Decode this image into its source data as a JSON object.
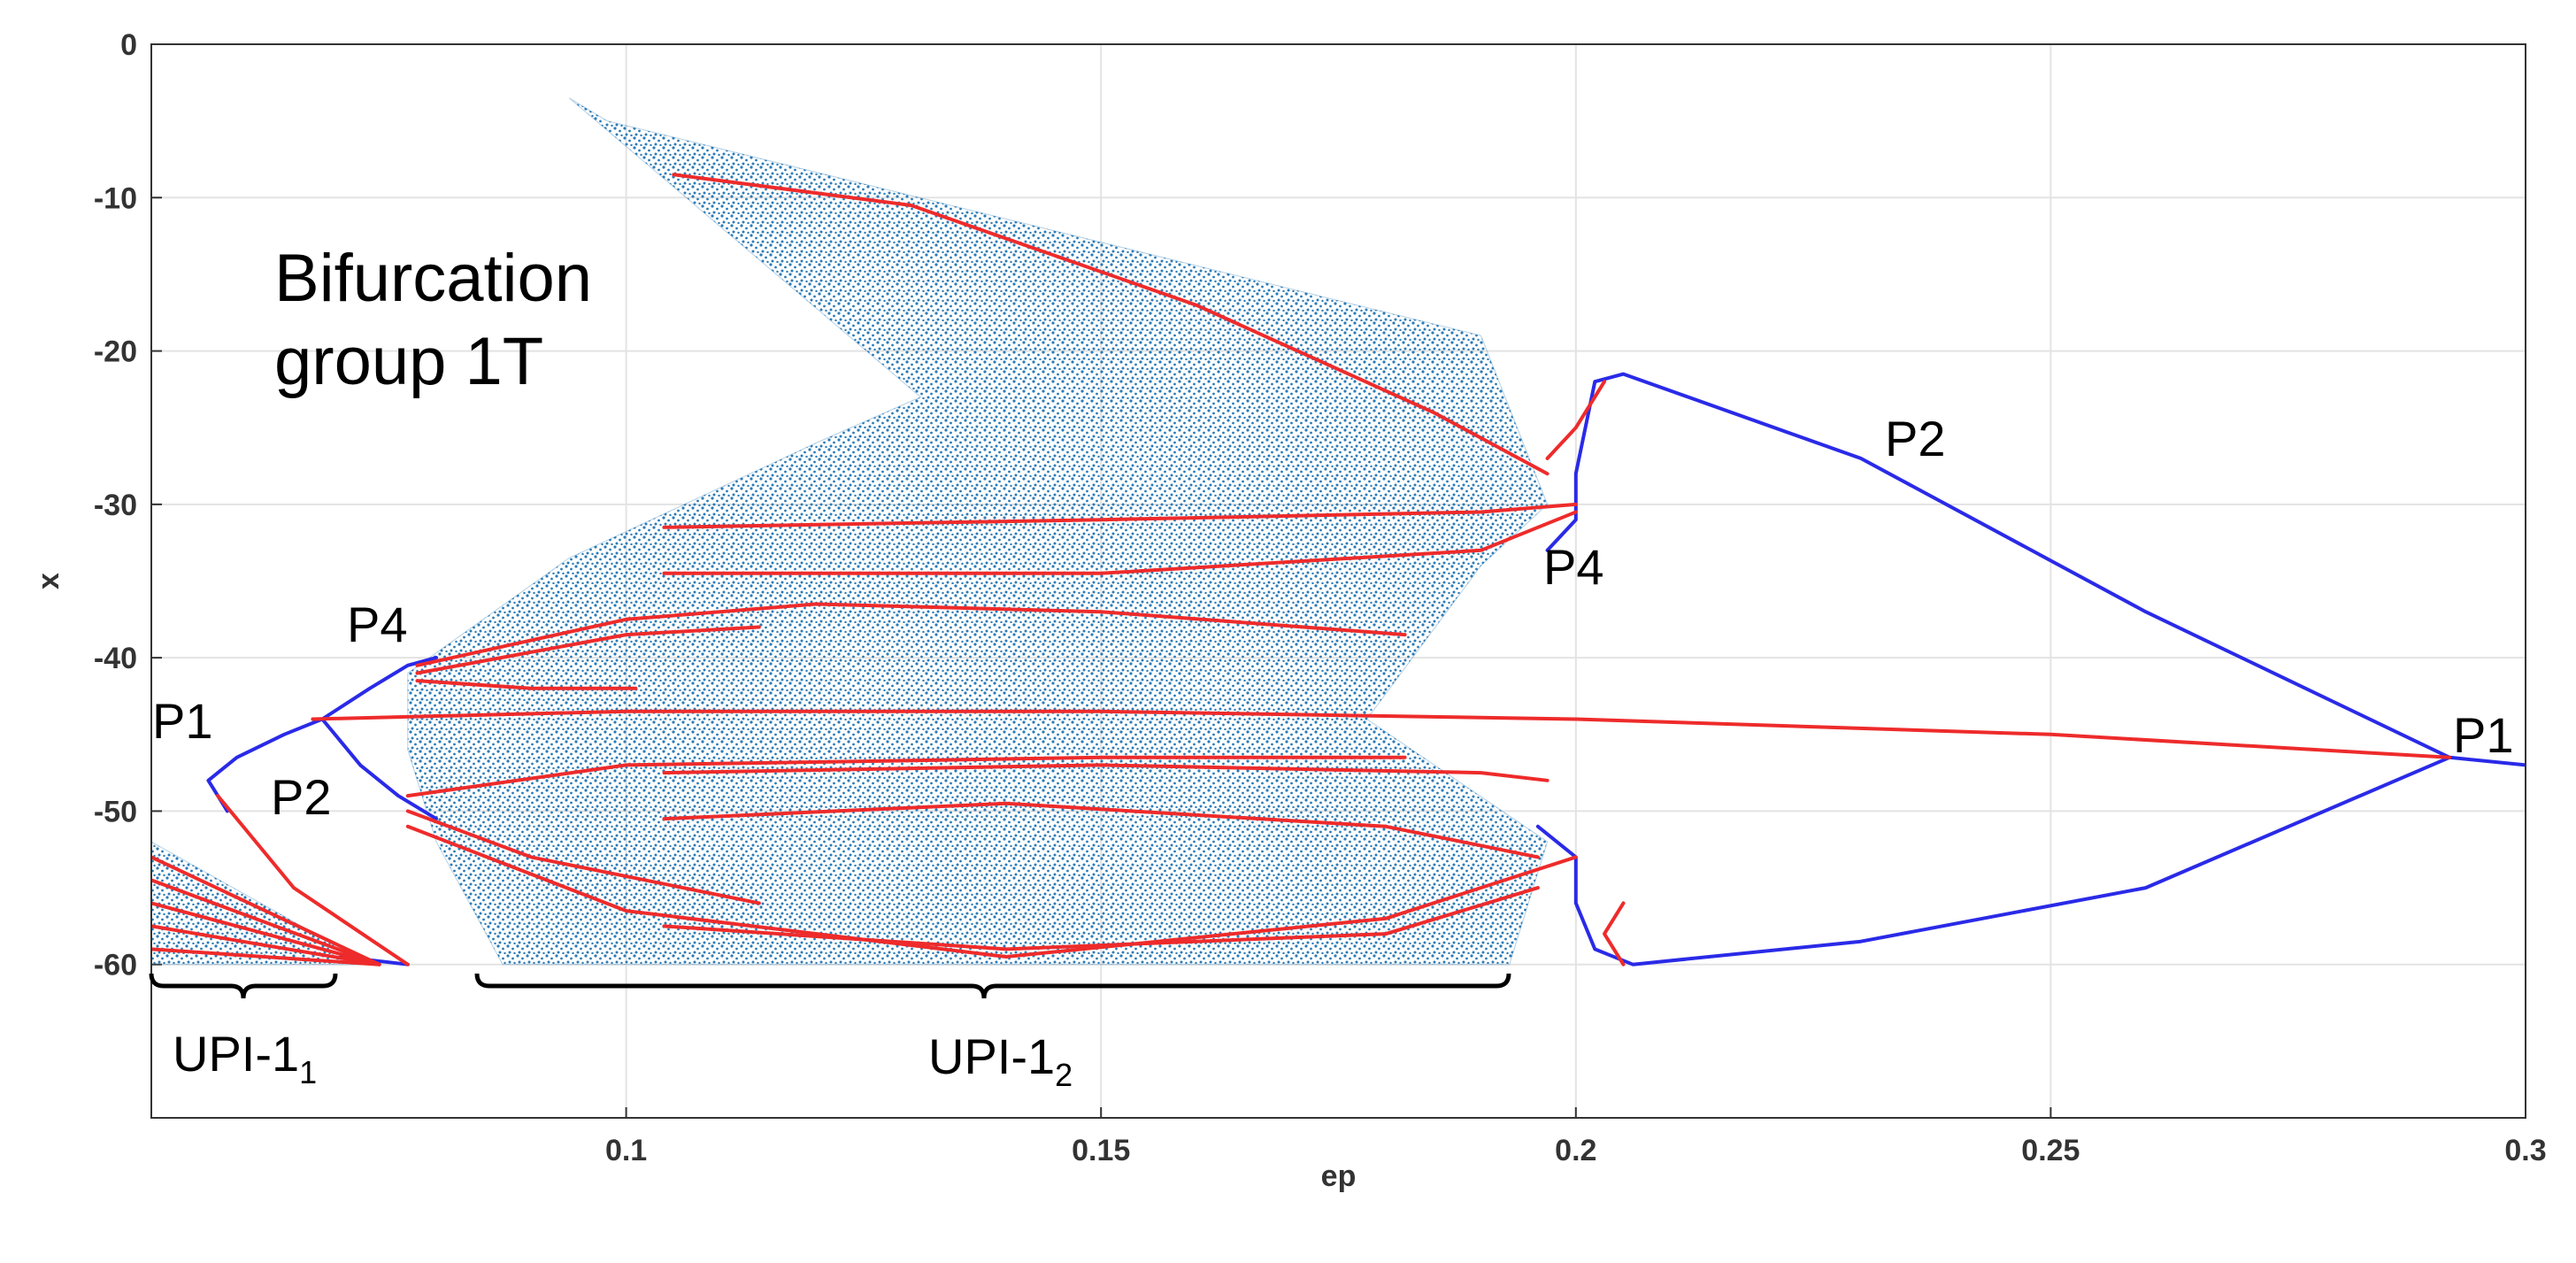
{
  "chart_data": {
    "type": "line",
    "xlabel": "ep",
    "ylabel": "x",
    "xlim": [
      0.05,
      0.3
    ],
    "xticks": [
      0.1,
      0.15,
      0.2,
      0.25,
      0.3
    ],
    "ylim": [
      -70,
      0
    ],
    "yticks": [
      0,
      -10,
      -20,
      -30,
      -40,
      -50,
      -60
    ],
    "grid": true,
    "series": [
      {
        "type": "area",
        "color": "#2c7bb6",
        "x": [
          0.05,
          0.073,
          0.05
        ],
        "y": [
          -52,
          -60,
          -60
        ]
      },
      {
        "type": "area",
        "color": "#2c7bb6",
        "x": [
          0.077,
          0.094,
          0.12,
          0.131,
          0.094,
          0.098,
          0.19,
          0.197,
          0.19,
          0.178,
          0.197,
          0.193,
          0.087,
          0.08,
          0.077
        ],
        "y": [
          -41,
          -33.5,
          -26,
          -23,
          -3.5,
          -5,
          -19,
          -30,
          -34,
          -44,
          -52,
          -60,
          -60,
          -52,
          -46
        ]
      },
      {
        "type": "line",
        "color": "#2a2ae8",
        "x": [
          0.058,
          0.056,
          0.059,
          0.064,
          0.068,
          0.073,
          0.077,
          0.08
        ],
        "y": [
          -50,
          -48,
          -46.5,
          -45,
          -44,
          -42,
          -40.5,
          -40
        ]
      },
      {
        "type": "line",
        "color": "#2a2ae8",
        "x": [
          0.068,
          0.072,
          0.076,
          0.08
        ],
        "y": [
          -44,
          -47,
          -49,
          -50.5
        ]
      },
      {
        "type": "line",
        "color": "#2a2ae8",
        "x": [
          0.197,
          0.2,
          0.2,
          0.202,
          0.205,
          0.23,
          0.26,
          0.292,
          0.3
        ],
        "y": [
          -33,
          -31,
          -28,
          -22,
          -21.5,
          -27,
          -37,
          -46.5,
          -47
        ]
      },
      {
        "type": "line",
        "color": "#2a2ae8",
        "x": [
          0.196,
          0.2,
          0.2,
          0.202,
          0.206,
          0.23,
          0.26,
          0.292
        ],
        "y": [
          -51,
          -53,
          -56,
          -59,
          -60,
          -58.5,
          -55,
          -46.5
        ]
      },
      {
        "type": "line",
        "color": "#2a2ae8",
        "x": [
          0.07,
          0.077
        ],
        "y": [
          -59.5,
          -60
        ]
      },
      {
        "type": "line",
        "color": "#ee2b2b",
        "x": [
          0.057,
          0.065,
          0.077
        ],
        "y": [
          -49,
          -55,
          -60
        ]
      },
      {
        "type": "line",
        "color": "#ee2b2b",
        "x": [
          0.05,
          0.074
        ],
        "y": [
          -53,
          -60
        ]
      },
      {
        "type": "line",
        "color": "#ee2b2b",
        "x": [
          0.05,
          0.074
        ],
        "y": [
          -54.5,
          -60
        ]
      },
      {
        "type": "line",
        "color": "#ee2b2b",
        "x": [
          0.05,
          0.074
        ],
        "y": [
          -56,
          -60
        ]
      },
      {
        "type": "line",
        "color": "#ee2b2b",
        "x": [
          0.05,
          0.074
        ],
        "y": [
          -57.5,
          -60
        ]
      },
      {
        "type": "line",
        "color": "#ee2b2b",
        "x": [
          0.05,
          0.074
        ],
        "y": [
          -59,
          -60
        ]
      },
      {
        "type": "line",
        "color": "#ee2b2b",
        "x": [
          0.105,
          0.13,
          0.16,
          0.185,
          0.197
        ],
        "y": [
          -8.5,
          -10.5,
          -17,
          -24,
          -28
        ]
      },
      {
        "type": "line",
        "color": "#ee2b2b",
        "x": [
          0.104,
          0.15,
          0.19,
          0.2
        ],
        "y": [
          -31.5,
          -31,
          -30.5,
          -30
        ]
      },
      {
        "type": "line",
        "color": "#ee2b2b",
        "x": [
          0.104,
          0.15,
          0.19,
          0.2
        ],
        "y": [
          -34.5,
          -34.5,
          -33,
          -30.5
        ]
      },
      {
        "type": "line",
        "color": "#ee2b2b",
        "x": [
          0.078,
          0.1,
          0.12,
          0.15,
          0.182
        ],
        "y": [
          -40.5,
          -37.5,
          -36.5,
          -37,
          -38.5
        ]
      },
      {
        "type": "line",
        "color": "#ee2b2b",
        "x": [
          0.078,
          0.1,
          0.114
        ],
        "y": [
          -41,
          -38.5,
          -38
        ]
      },
      {
        "type": "line",
        "color": "#ee2b2b",
        "x": [
          0.078,
          0.09,
          0.101
        ],
        "y": [
          -41.5,
          -42,
          -42
        ]
      },
      {
        "type": "line",
        "color": "#ee2b2b",
        "x": [
          0.067,
          0.1,
          0.15,
          0.2,
          0.25,
          0.292
        ],
        "y": [
          -44,
          -43.5,
          -43.5,
          -44,
          -45,
          -46.5
        ]
      },
      {
        "type": "line",
        "color": "#ee2b2b",
        "x": [
          0.077,
          0.1,
          0.15,
          0.182
        ],
        "y": [
          -49,
          -47,
          -46.5,
          -46.5
        ]
      },
      {
        "type": "line",
        "color": "#ee2b2b",
        "x": [
          0.104,
          0.15,
          0.19,
          0.197
        ],
        "y": [
          -47.5,
          -47,
          -47.5,
          -48
        ]
      },
      {
        "type": "line",
        "color": "#ee2b2b",
        "x": [
          0.104,
          0.14,
          0.18,
          0.196
        ],
        "y": [
          -50.5,
          -49.5,
          -51,
          -53
        ]
      },
      {
        "type": "line",
        "color": "#ee2b2b",
        "x": [
          0.104,
          0.14,
          0.18,
          0.196
        ],
        "y": [
          -57.5,
          -59,
          -58,
          -55
        ]
      },
      {
        "type": "line",
        "color": "#ee2b2b",
        "x": [
          0.077,
          0.09,
          0.114
        ],
        "y": [
          -50,
          -53,
          -56
        ]
      },
      {
        "type": "line",
        "color": "#ee2b2b",
        "x": [
          0.077,
          0.1,
          0.14,
          0.18,
          0.2
        ],
        "y": [
          -51,
          -56.5,
          -59.5,
          -57,
          -53
        ]
      },
      {
        "type": "line",
        "color": "#ee2b2b",
        "x": [
          0.203,
          0.2,
          0.197
        ],
        "y": [
          -22,
          -25,
          -27
        ]
      },
      {
        "type": "line",
        "color": "#ee2b2b",
        "x": [
          0.205,
          0.203,
          0.205
        ],
        "y": [
          -56,
          -58,
          -60
        ]
      }
    ],
    "annotations": {
      "group": [
        "Bifurcation",
        "group 1T"
      ],
      "p4_left": "P4",
      "p4_right": "P4",
      "p1_left": "P1",
      "p1_right": "P1",
      "p2_left": "P2",
      "p2_right": "P2",
      "upi_1": {
        "text": "UPI-1",
        "sub": "1"
      },
      "upi_2": {
        "text": "UPI-1",
        "sub": "2"
      }
    }
  }
}
